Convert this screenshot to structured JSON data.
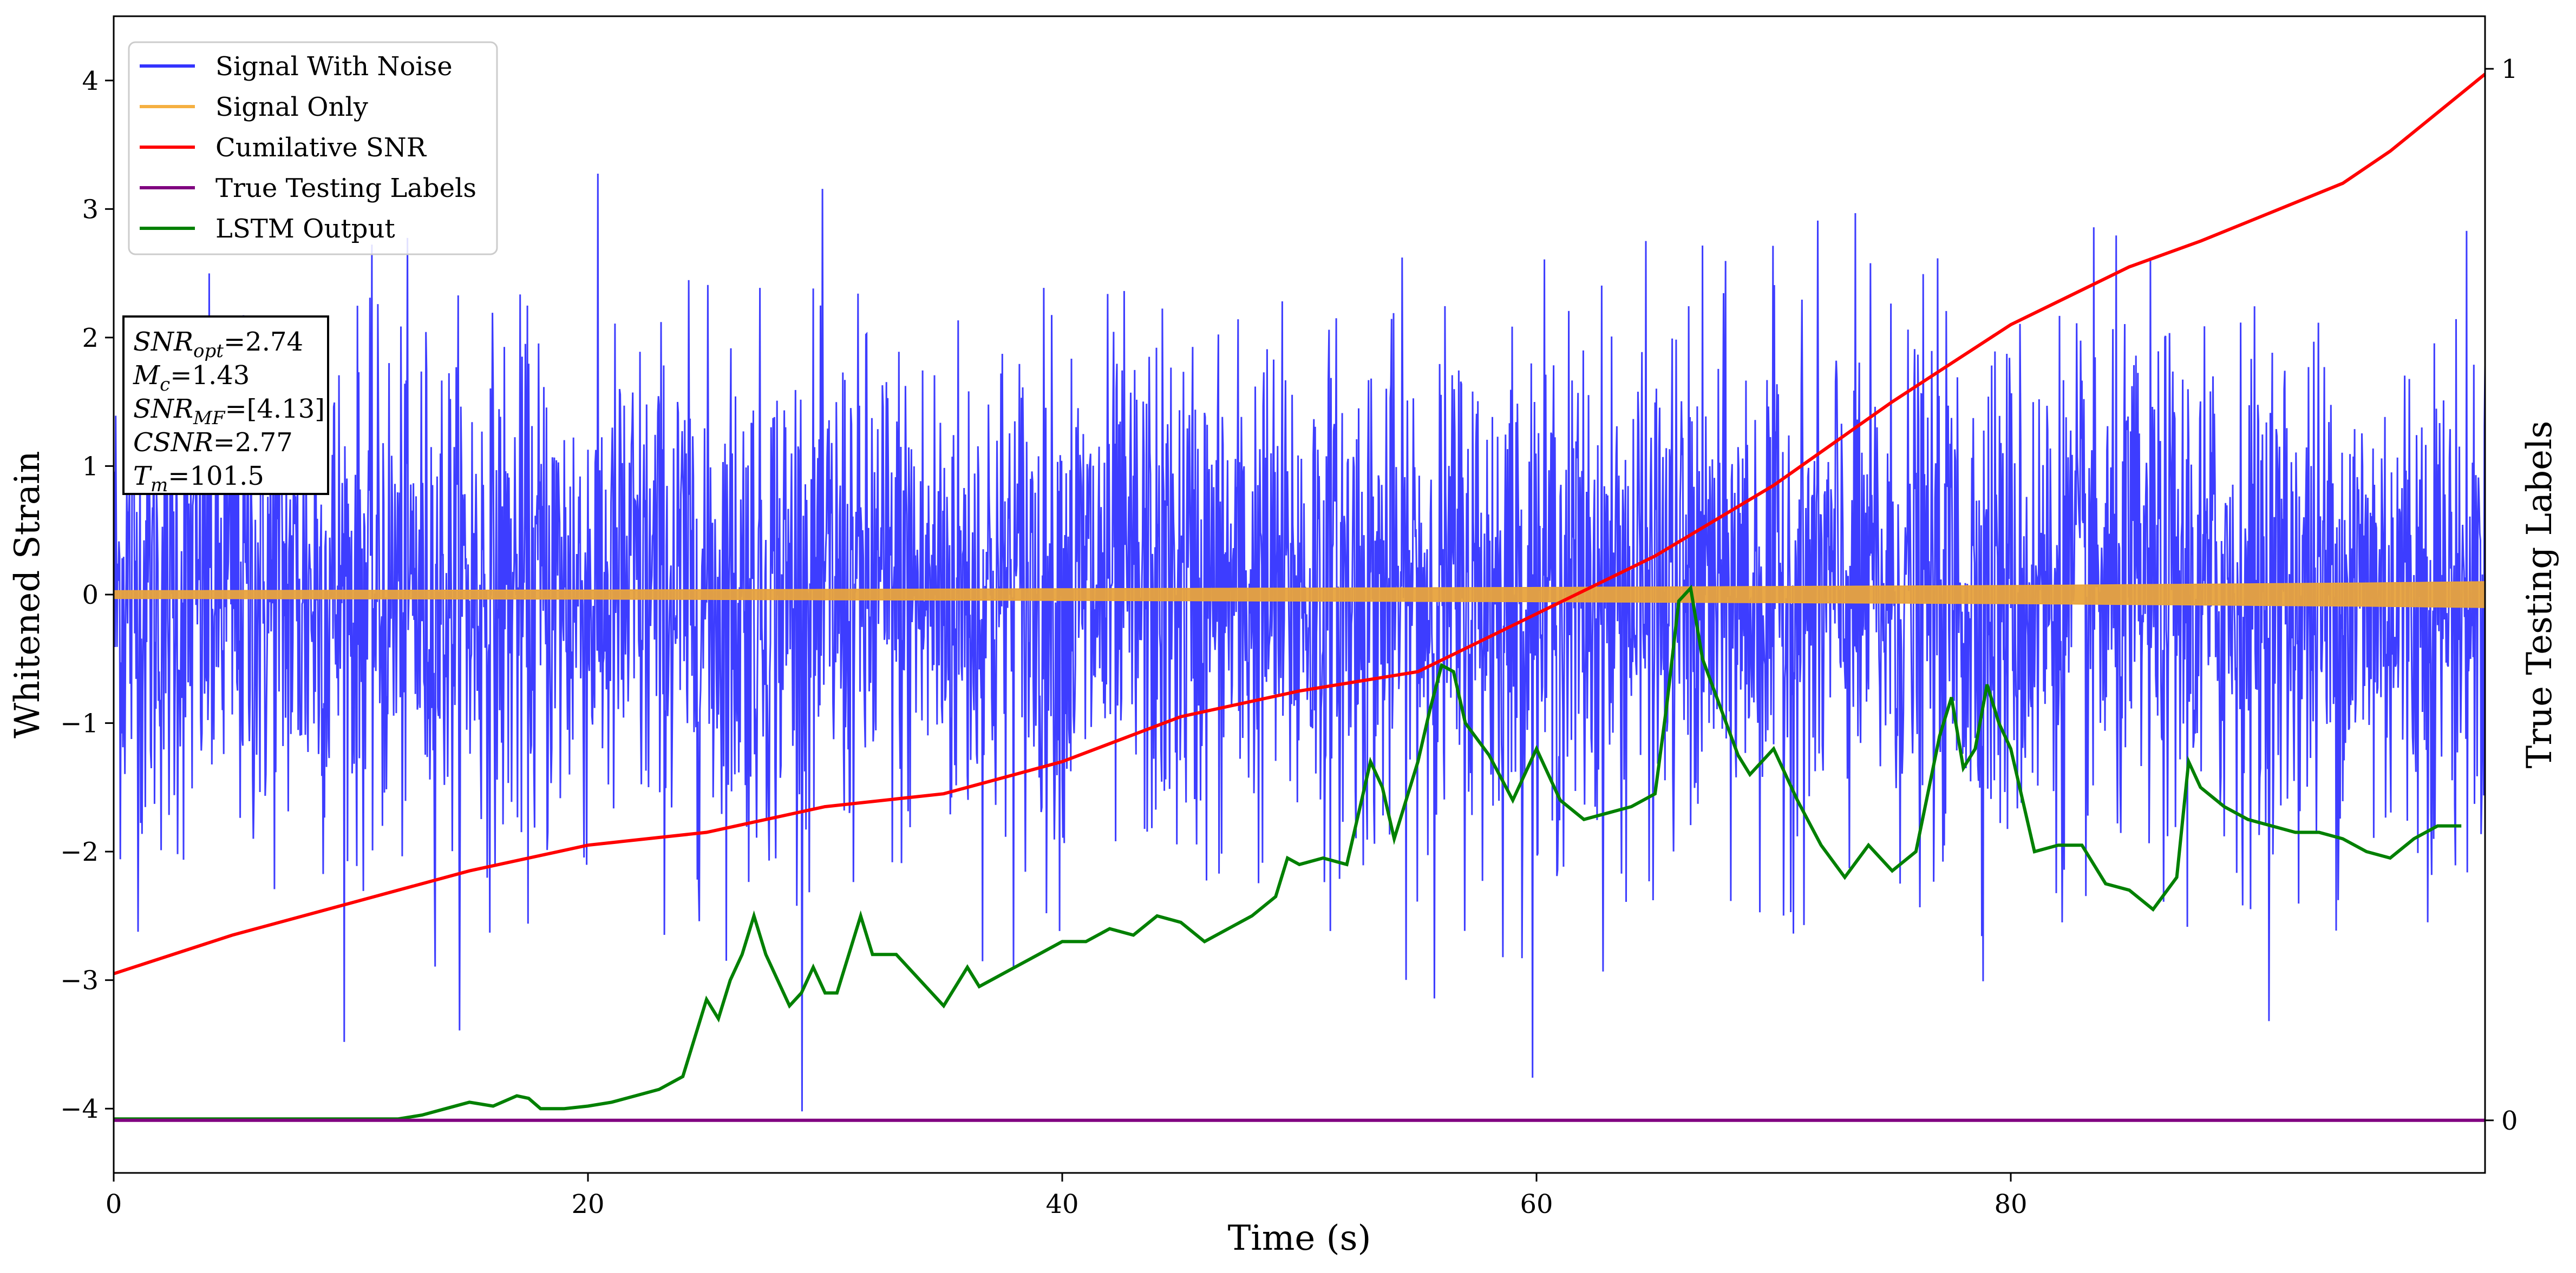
{
  "chart_data": {
    "type": "line",
    "xlabel": "Time (s)",
    "ylabel": "Whitened Strain",
    "y2label": "True Testing Labels",
    "xlim": [
      0,
      100
    ],
    "ylim": [
      -4.5,
      4.5
    ],
    "y2lim": [
      -0.05,
      1.05
    ],
    "grid": false,
    "legend_position": "top-left",
    "x_ticks": [
      0,
      20,
      40,
      60,
      80
    ],
    "y_ticks": [
      -4,
      -3,
      -2,
      -1,
      0,
      1,
      2,
      3,
      4
    ],
    "y2_ticks": [
      0,
      1
    ],
    "series": [
      {
        "name": "Signal With Noise",
        "axis": "left",
        "color": "#3333ff",
        "x": [
          0,
          100
        ],
        "y": [
          0.0,
          0.0
        ],
        "noise_sigma": 1.0,
        "min_y": -4.05,
        "max_y": 4.1
      },
      {
        "name": "Signal Only",
        "axis": "left",
        "color": "#f5b041",
        "x": [
          0,
          20,
          40,
          60,
          80,
          95,
          100
        ],
        "amplitude": [
          0.03,
          0.035,
          0.045,
          0.055,
          0.07,
          0.09,
          0.1
        ]
      },
      {
        "name": "Cumilative SNR",
        "axis": "left",
        "color": "#ff0000",
        "x": [
          0,
          5,
          10,
          15,
          20,
          25,
          30,
          35,
          40,
          45,
          50,
          55,
          60,
          65,
          70,
          75,
          80,
          85,
          88,
          90,
          94,
          96,
          100
        ],
        "y": [
          -2.95,
          -2.65,
          -2.4,
          -2.15,
          -1.95,
          -1.85,
          -1.65,
          -1.55,
          -1.3,
          -0.95,
          -0.75,
          -0.6,
          -0.15,
          0.3,
          0.85,
          1.5,
          2.1,
          2.55,
          2.75,
          2.9,
          3.2,
          3.45,
          4.05
        ]
      },
      {
        "name": "True Testing Labels",
        "axis": "right",
        "color": "#800080",
        "x": [
          0,
          100
        ],
        "y": [
          0,
          0
        ]
      },
      {
        "name": "LSTM Output",
        "axis": "left",
        "color": "#008000",
        "x": [
          0,
          10,
          12,
          13,
          14,
          15,
          16,
          17,
          17.5,
          18,
          19,
          20,
          21,
          22,
          23,
          24,
          25,
          25.5,
          26,
          26.5,
          27,
          27.5,
          28,
          28.5,
          29,
          29.5,
          30,
          30.5,
          31,
          31.5,
          32,
          33,
          34,
          35,
          36,
          36.5,
          37,
          38,
          39,
          40,
          41,
          42,
          43,
          44,
          45,
          46,
          47,
          48,
          49,
          49.5,
          50,
          51,
          52,
          52.5,
          53,
          53.5,
          54,
          55,
          55.5,
          56,
          56.5,
          57,
          58,
          59,
          60,
          61,
          62,
          63,
          64,
          65,
          65.5,
          66,
          66.5,
          67,
          67.5,
          68,
          68.5,
          69,
          70,
          71,
          72,
          73,
          74,
          75,
          76,
          77,
          77.5,
          78,
          78.5,
          79,
          79.5,
          80,
          81,
          82,
          83,
          84,
          85,
          86,
          87,
          87.5,
          88,
          89,
          90,
          91,
          92,
          93,
          94,
          95,
          96,
          97,
          98,
          99
        ],
        "y": [
          -4.08,
          -4.08,
          -4.08,
          -4.05,
          -4.0,
          -3.95,
          -3.98,
          -3.9,
          -3.92,
          -4.0,
          -4.0,
          -3.98,
          -3.95,
          -3.9,
          -3.85,
          -3.75,
          -3.15,
          -3.3,
          -3.0,
          -2.8,
          -2.5,
          -2.8,
          -3.0,
          -3.2,
          -3.1,
          -2.9,
          -3.1,
          -3.1,
          -2.8,
          -2.5,
          -2.8,
          -2.8,
          -3.0,
          -3.2,
          -2.9,
          -3.05,
          -3.0,
          -2.9,
          -2.8,
          -2.7,
          -2.7,
          -2.6,
          -2.65,
          -2.5,
          -2.55,
          -2.7,
          -2.6,
          -2.5,
          -2.35,
          -2.05,
          -2.1,
          -2.05,
          -2.1,
          -1.7,
          -1.3,
          -1.5,
          -1.9,
          -1.3,
          -0.9,
          -0.55,
          -0.6,
          -1.0,
          -1.25,
          -1.6,
          -1.2,
          -1.6,
          -1.75,
          -1.7,
          -1.65,
          -1.55,
          -0.85,
          -0.05,
          0.05,
          -0.5,
          -0.75,
          -1.0,
          -1.25,
          -1.4,
          -1.2,
          -1.6,
          -1.95,
          -2.2,
          -1.95,
          -2.15,
          -2.0,
          -1.1,
          -0.8,
          -1.35,
          -1.2,
          -0.7,
          -1.0,
          -1.2,
          -2.0,
          -1.95,
          -1.95,
          -2.25,
          -2.3,
          -2.45,
          -2.2,
          -1.3,
          -1.5,
          -1.65,
          -1.75,
          -1.8,
          -1.85,
          -1.85,
          -1.9,
          -2.0,
          -2.05,
          -1.9,
          -1.8,
          -1.8
        ]
      }
    ],
    "annotation": [
      {
        "var": "SNR",
        "sub": "opt",
        "value": "=2.74"
      },
      {
        "var": "M",
        "sub": "c",
        "value": "=1.43"
      },
      {
        "var": "SNR",
        "sub": "MF",
        "value": "=[4.13]"
      },
      {
        "var": "CSNR",
        "sub": "",
        "value": "=2.77"
      },
      {
        "var": "T",
        "sub": "m",
        "value": "=101.5"
      }
    ]
  }
}
